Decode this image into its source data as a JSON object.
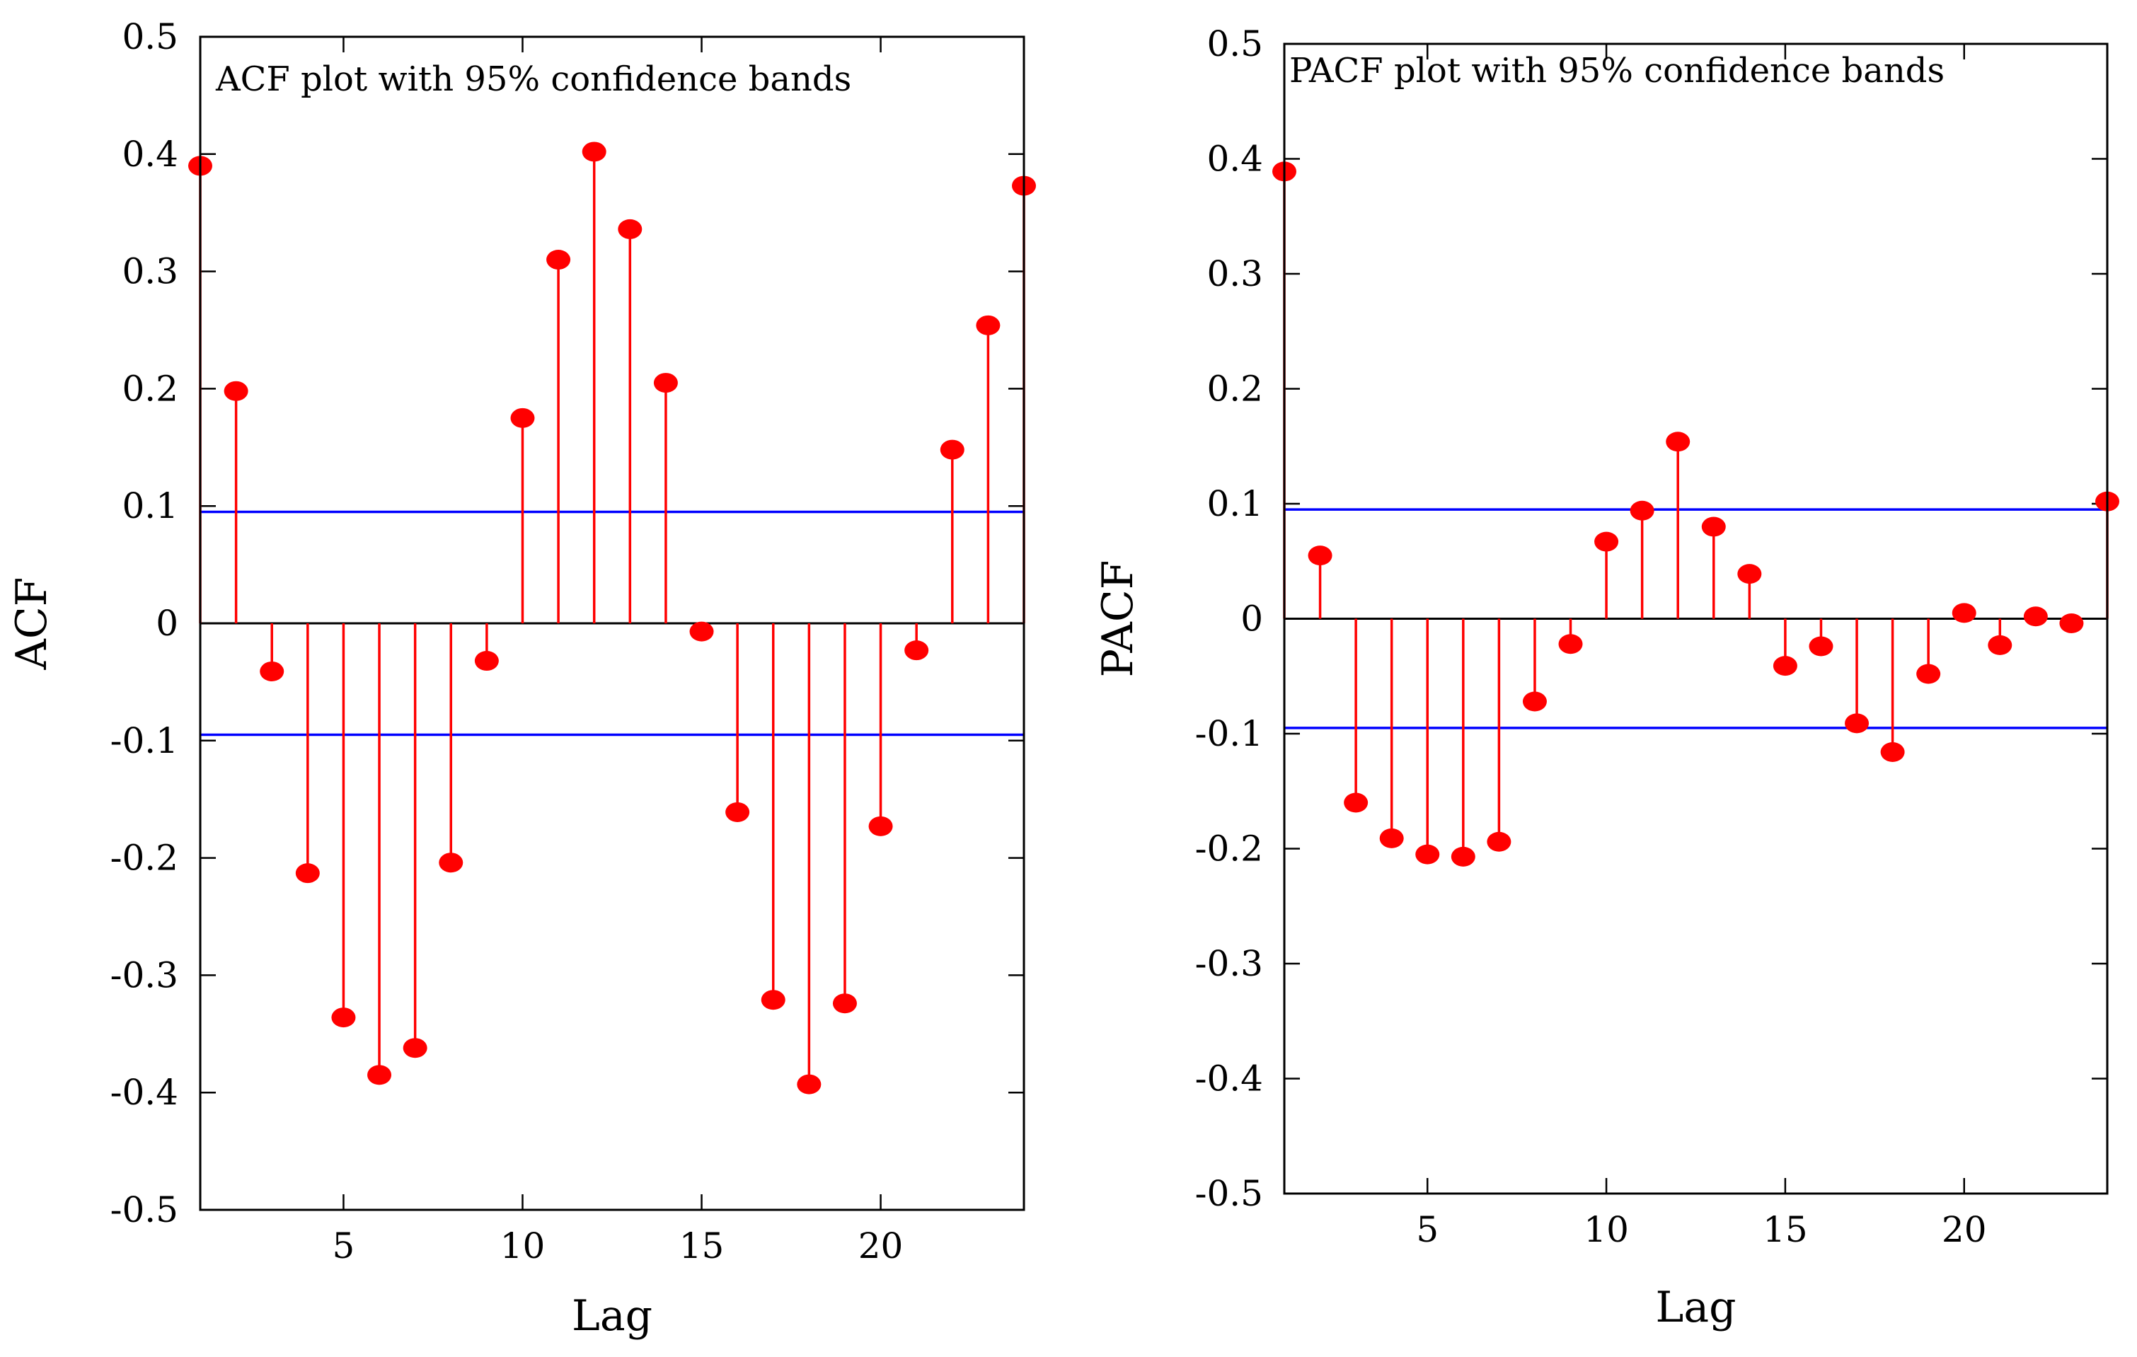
{
  "chart_data": [
    {
      "type": "stem",
      "title": "ACF plot with 95% confidence bands",
      "xlabel": "Lag",
      "ylabel": "ACF",
      "xlim": [
        1,
        24
      ],
      "ylim": [
        -0.5,
        0.5
      ],
      "xticks": [
        5,
        10,
        15,
        20
      ],
      "yticks": [
        -0.5,
        -0.4,
        -0.3,
        -0.2,
        -0.1,
        0,
        0.1,
        0.2,
        0.3,
        0.4,
        0.5
      ],
      "ytick_labels": [
        "-0.5",
        "-0.4",
        "-0.3",
        "-0.2",
        "-0.1",
        "0",
        "0.1",
        "0.2",
        "0.3",
        "0.4",
        "0.5"
      ],
      "confidence_band": [
        -0.095,
        0.095
      ],
      "band_color": "#0000ff",
      "stem_color": "#ff0000",
      "lags": [
        1,
        2,
        3,
        4,
        5,
        6,
        7,
        8,
        9,
        10,
        11,
        12,
        13,
        14,
        15,
        16,
        17,
        18,
        19,
        20,
        21,
        22,
        23,
        24
      ],
      "values": [
        0.39,
        0.198,
        -0.041,
        -0.213,
        -0.336,
        -0.385,
        -0.362,
        -0.204,
        -0.032,
        0.175,
        0.31,
        0.402,
        0.336,
        0.205,
        -0.007,
        -0.161,
        -0.321,
        -0.393,
        -0.324,
        -0.173,
        -0.023,
        0.148,
        0.254,
        0.373
      ]
    },
    {
      "type": "stem",
      "title": "PACF plot with 95% confidence bands",
      "xlabel": "Lag",
      "ylabel": "PACF",
      "xlim": [
        1,
        24
      ],
      "ylim": [
        -0.5,
        0.5
      ],
      "xticks": [
        5,
        10,
        15,
        20
      ],
      "yticks": [
        -0.5,
        -0.4,
        -0.3,
        -0.2,
        -0.1,
        0,
        0.1,
        0.2,
        0.3,
        0.4,
        0.5
      ],
      "ytick_labels": [
        "-0.5",
        "-0.4",
        "-0.3",
        "-0.2",
        "-0.1",
        "0",
        "0.1",
        "0.2",
        "0.3",
        "0.4",
        "0.5"
      ],
      "confidence_band": [
        -0.095,
        0.095
      ],
      "band_color": "#0000ff",
      "stem_color": "#ff0000",
      "lags": [
        1,
        2,
        3,
        4,
        5,
        6,
        7,
        8,
        9,
        10,
        11,
        12,
        13,
        14,
        15,
        16,
        17,
        18,
        19,
        20,
        21,
        22,
        23,
        24
      ],
      "values": [
        0.389,
        0.055,
        -0.16,
        -0.191,
        -0.205,
        -0.207,
        -0.194,
        -0.072,
        -0.022,
        0.067,
        0.094,
        0.154,
        0.08,
        0.039,
        -0.041,
        -0.024,
        -0.091,
        -0.116,
        -0.048,
        0.005,
        -0.023,
        0.002,
        -0.004,
        0.102
      ]
    }
  ]
}
